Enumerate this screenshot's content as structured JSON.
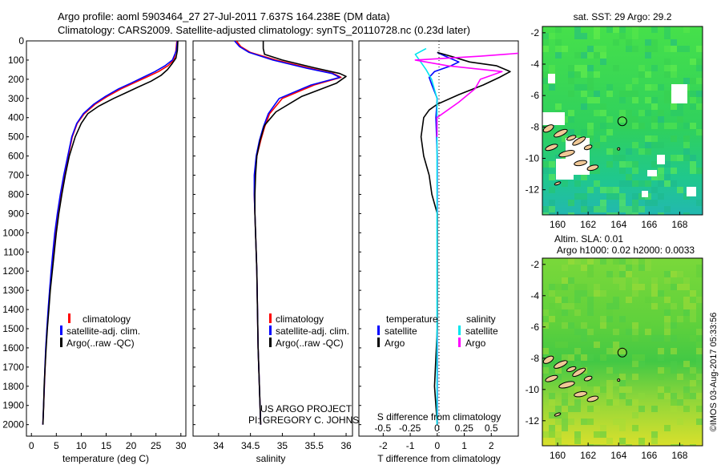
{
  "header": {
    "line1": "Argo profile: aoml 5903464_27 27-Jul-2011 7.637S 164.238E (DM data)",
    "line2": "Climatology: CARS2009. Satellite-adjusted climatology: synTS_20110728.nc (0.23d later)"
  },
  "colors": {
    "climatology": "#ff0000",
    "satellite": "#0000ff",
    "argo": "#000000",
    "sal_satellite": "#00e5ee",
    "sal_argo": "#ff00ff"
  },
  "credit": {
    "line1": "US ARGO PROJECT",
    "line2": "PI: GREGORY C. JOHNSON"
  },
  "timestamp": "©IMOS 03-Aug-2017 05:33:56",
  "chart_data": [
    {
      "type": "line",
      "id": "temperature",
      "xlabel": "temperature (deg C)",
      "xlim": [
        -1,
        31
      ],
      "ylim": [
        2060,
        0
      ],
      "xticks": [
        0,
        5,
        10,
        15,
        20,
        25,
        30
      ],
      "yticks": [
        0,
        100,
        200,
        300,
        400,
        500,
        600,
        700,
        800,
        900,
        1000,
        1100,
        1200,
        1300,
        1400,
        1500,
        1600,
        1700,
        1800,
        1900,
        2000
      ],
      "legend": [
        "climatology",
        "satellite-adj. clim.",
        "Argo(..raw -QC)"
      ],
      "series": [
        {
          "name": "climatology",
          "color": "#ff0000",
          "x": [
            29.2,
            29.0,
            28.6,
            27.4,
            25.5,
            23.0,
            20.5,
            18.0,
            15.2,
            12.8,
            10.6,
            9.2,
            8.2,
            7.4,
            6.6,
            5.9,
            5.3,
            4.8,
            4.4,
            4.0,
            3.7,
            3.4,
            3.15,
            2.9,
            2.75,
            2.6,
            2.45,
            2.3
          ],
          "y": [
            0,
            50,
            100,
            130,
            160,
            190,
            220,
            250,
            290,
            330,
            380,
            430,
            500,
            600,
            700,
            800,
            900,
            1000,
            1100,
            1200,
            1300,
            1400,
            1500,
            1600,
            1700,
            1800,
            1900,
            2000
          ]
        },
        {
          "name": "satellite-adj. clim.",
          "color": "#0000ff",
          "x": [
            29.3,
            29.1,
            28.3,
            26.8,
            24.8,
            22.4,
            20.0,
            17.5,
            14.8,
            12.5,
            10.4,
            9.1,
            8.1,
            7.3,
            6.5,
            5.8,
            5.2,
            4.7,
            4.3,
            3.95,
            3.65,
            3.35,
            3.1,
            2.88,
            2.72,
            2.58,
            2.44,
            2.3
          ],
          "y": [
            0,
            50,
            100,
            130,
            160,
            190,
            220,
            250,
            290,
            330,
            380,
            430,
            500,
            600,
            700,
            800,
            900,
            1000,
            1100,
            1200,
            1300,
            1400,
            1500,
            1600,
            1700,
            1800,
            1900,
            2000
          ]
        },
        {
          "name": "Argo(..raw -QC)",
          "color": "#000000",
          "x": [
            29.4,
            29.3,
            29.0,
            28.2,
            27.3,
            26.0,
            24.0,
            21.5,
            19.0,
            16.5,
            13.5,
            11.3,
            10.0,
            8.8,
            7.6,
            6.8,
            6.1,
            5.5,
            5.0,
            4.6,
            4.2,
            3.8,
            3.5,
            3.2,
            2.95,
            2.75,
            2.55,
            2.45,
            2.32
          ],
          "y": [
            0,
            50,
            90,
            120,
            150,
            180,
            210,
            240,
            270,
            300,
            340,
            380,
            430,
            500,
            600,
            700,
            800,
            900,
            1000,
            1100,
            1200,
            1300,
            1400,
            1500,
            1600,
            1700,
            1800,
            1900,
            2000
          ]
        }
      ]
    },
    {
      "type": "line",
      "id": "salinity",
      "xlabel": "salinity",
      "xlim": [
        33.6,
        36.1
      ],
      "ylim": [
        2060,
        0
      ],
      "xticks": [
        34,
        34.5,
        35,
        35.5,
        36
      ],
      "legend": [
        "climatology",
        "satellite-adj. clim.",
        "Argo(..raw -QC)"
      ],
      "series": [
        {
          "name": "climatology",
          "color": "#ff0000",
          "x": [
            34.28,
            34.35,
            34.5,
            34.9,
            35.4,
            35.8,
            35.92,
            35.5,
            35.0,
            34.8,
            34.72,
            34.66,
            34.6,
            34.57,
            34.56,
            34.57,
            34.58,
            34.59,
            34.6,
            34.61,
            34.62,
            34.63,
            34.64,
            34.65,
            34.66
          ],
          "y": [
            0,
            30,
            60,
            100,
            140,
            170,
            190,
            230,
            300,
            380,
            450,
            520,
            600,
            700,
            800,
            900,
            1000,
            1100,
            1200,
            1400,
            1600,
            1700,
            1800,
            1900,
            2000
          ]
        },
        {
          "name": "satellite-adj. clim.",
          "color": "#0000ff",
          "x": [
            34.25,
            34.33,
            34.48,
            34.85,
            35.35,
            35.78,
            35.9,
            35.45,
            34.95,
            34.78,
            34.7,
            34.64,
            34.59,
            34.56,
            34.56,
            34.57,
            34.58,
            34.59,
            34.6,
            34.61,
            34.62,
            34.63,
            34.64,
            34.65,
            34.66
          ],
          "y": [
            0,
            30,
            60,
            100,
            140,
            170,
            190,
            230,
            300,
            380,
            450,
            520,
            600,
            700,
            800,
            900,
            1000,
            1100,
            1200,
            1400,
            1600,
            1700,
            1800,
            1900,
            2000
          ]
        },
        {
          "name": "Argo(..raw -QC)",
          "color": "#000000",
          "x": [
            34.7,
            34.7,
            34.72,
            35.0,
            35.5,
            35.9,
            36.0,
            35.85,
            35.3,
            34.9,
            34.72,
            34.65,
            34.6,
            34.58,
            34.57,
            34.57,
            34.58,
            34.59,
            34.6,
            34.61,
            34.62,
            34.63,
            34.64,
            34.65,
            34.66
          ],
          "y": [
            0,
            40,
            70,
            100,
            140,
            170,
            185,
            220,
            290,
            370,
            440,
            520,
            600,
            700,
            800,
            900,
            1000,
            1100,
            1200,
            1400,
            1600,
            1700,
            1800,
            1900,
            2000
          ]
        }
      ]
    },
    {
      "type": "line",
      "id": "difference",
      "xlabel": "T difference from climatology",
      "xlabel_top": "S difference from climatology",
      "xlim": [
        -2.9,
        3.0
      ],
      "ylim": [
        2060,
        0
      ],
      "xticks": [
        -2,
        -1,
        0,
        1,
        2
      ],
      "sal_ticks": [
        -0.5,
        -0.25,
        0,
        0.25,
        0.5
      ],
      "legend_headers": [
        "temperature",
        "salinity"
      ],
      "legend": [
        "satellite",
        "Argo",
        "satellite",
        "Argo"
      ],
      "series": [
        {
          "name": "T satellite",
          "color": "#0000ff",
          "x": [
            0,
            0.3,
            0.8,
            0.5,
            -0.1,
            -0.3,
            -0.2,
            0.0,
            -0.05,
            0.0,
            0.0,
            0.0,
            0.0,
            0.0
          ],
          "y": [
            60,
            80,
            110,
            130,
            160,
            190,
            230,
            300,
            400,
            600,
            800,
            1200,
            1600,
            2000
          ]
        },
        {
          "name": "T Argo",
          "color": "#000000",
          "x": [
            0,
            0.5,
            1.2,
            2.2,
            2.7,
            2.3,
            1.7,
            0.8,
            0.0,
            -0.3,
            -0.5,
            -0.6,
            -0.5,
            -0.3,
            -0.2,
            0.0,
            0.0,
            0.0,
            0.0,
            -0.1,
            0.0
          ],
          "y": [
            60,
            80,
            110,
            130,
            160,
            190,
            230,
            280,
            330,
            360,
            400,
            500,
            600,
            700,
            800,
            900,
            1000,
            1200,
            1500,
            1800,
            2000
          ]
        },
        {
          "name": "S satellite",
          "color": "#00e5ee",
          "x": [
            -0.1,
            -0.2,
            -0.15,
            -0.1,
            -0.05,
            0.0,
            0.0,
            0.0,
            0.0,
            0.0,
            0.0,
            0.0
          ],
          "y": [
            40,
            70,
            110,
            150,
            200,
            300,
            500,
            700,
            1000,
            1400,
            1800,
            2000
          ]
        },
        {
          "name": "S Argo",
          "color": "#ff00ff",
          "x": [
            0.85,
            0.4,
            -0.2,
            0.1,
            0.6,
            0.4,
            0.35,
            0.2,
            0.0,
            0.0
          ],
          "y": [
            60,
            80,
            100,
            130,
            160,
            200,
            250,
            320,
            400,
            500
          ]
        }
      ]
    },
    {
      "type": "heatmap",
      "id": "sst-map",
      "title": "sat. SST: 29 Argo: 29.2",
      "xlim": [
        159,
        169.5
      ],
      "ylim": [
        -13.6,
        -1.6
      ],
      "xticks": [
        160,
        162,
        164,
        166,
        168
      ],
      "yticks": [
        -2,
        -4,
        -6,
        -8,
        -10,
        -12
      ]
    },
    {
      "type": "heatmap",
      "id": "sla-map",
      "title": "Altim. SLA: 0.01",
      "subtitle": "Argo h1000: 0.02 h2000: 0.0033",
      "xlim": [
        159,
        169.5
      ],
      "ylim": [
        -13.6,
        -1.6
      ],
      "xticks": [
        160,
        162,
        164,
        166,
        168
      ],
      "yticks": [
        -2,
        -4,
        -6,
        -8,
        -10,
        -12
      ]
    }
  ],
  "float_position": {
    "lon": 164.238,
    "lat": -7.637
  }
}
